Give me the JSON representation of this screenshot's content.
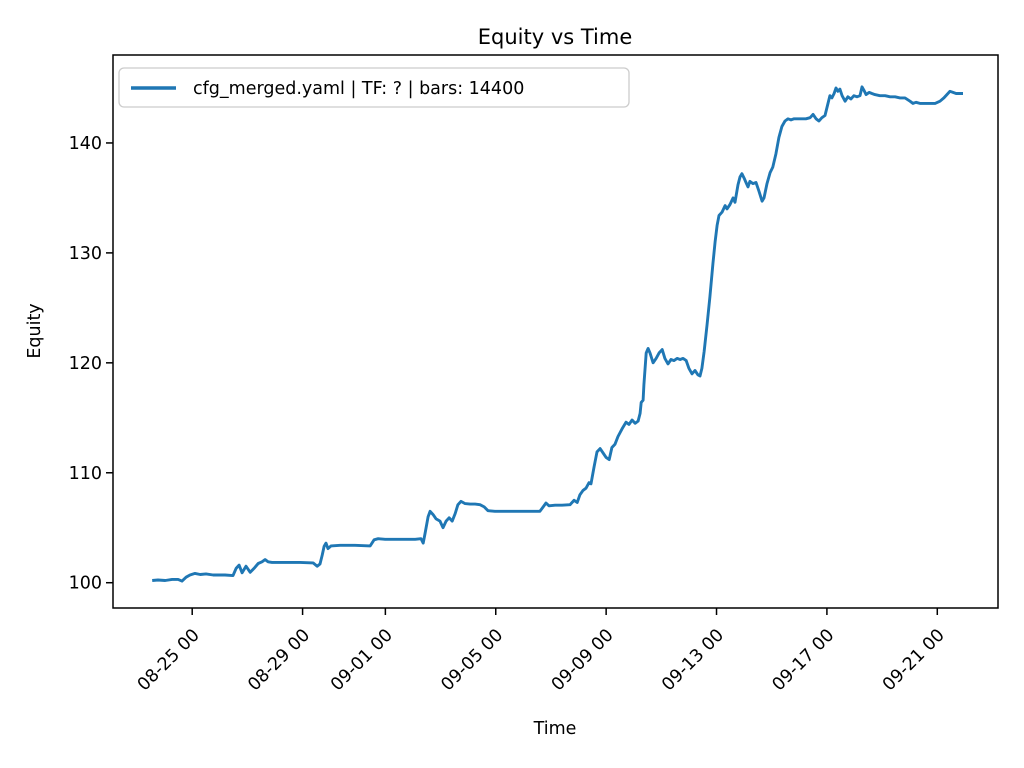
{
  "figure": {
    "title": "Equity vs Time",
    "xlabel": "Time",
    "ylabel": "Equity",
    "legend_label": "cfg_merged.yaml | TF: ? | bars: 14400",
    "line_color": "#1f77b4",
    "background_color": "#ffffff"
  },
  "chart_data": {
    "type": "line",
    "title": "Equity vs Time",
    "xlabel": "Time",
    "ylabel": "Equity",
    "grid": false,
    "legend_position": "upper left",
    "legend_entries": [
      "cfg_merged.yaml | TF: ? | bars: 14400"
    ],
    "x_axis": {
      "unit": "days since 08-23 00:00",
      "tick_positions_days": [
        2,
        6,
        9,
        13,
        17,
        21,
        25,
        29
      ],
      "tick_labels": [
        "08-25 00",
        "08-29 00",
        "09-01 00",
        "09-05 00",
        "09-09 00",
        "09-13 00",
        "09-17 00",
        "09-21 00"
      ],
      "xlim_days": [
        -0.87,
        31.2
      ],
      "tick_label_rotation_deg": 45
    },
    "y_axis": {
      "ticks": [
        100,
        110,
        120,
        130,
        140
      ],
      "ylim": [
        97.7,
        148.0
      ]
    },
    "series": [
      {
        "name": "cfg_merged.yaml | TF: ? | bars: 14400",
        "color": "#1f77b4",
        "x_format": "[days_since_08-23_00:00, equity]",
        "points": [
          [
            0.55,
            100.2
          ],
          [
            0.76,
            100.25
          ],
          [
            1.02,
            100.2
          ],
          [
            1.27,
            100.3
          ],
          [
            1.49,
            100.3
          ],
          [
            1.63,
            100.15
          ],
          [
            1.78,
            100.5
          ],
          [
            1.92,
            100.7
          ],
          [
            2.1,
            100.85
          ],
          [
            2.29,
            100.75
          ],
          [
            2.5,
            100.8
          ],
          [
            2.76,
            100.7
          ],
          [
            3.19,
            100.7
          ],
          [
            3.48,
            100.65
          ],
          [
            3.59,
            101.3
          ],
          [
            3.7,
            101.6
          ],
          [
            3.81,
            100.9
          ],
          [
            3.95,
            101.5
          ],
          [
            4.1,
            100.95
          ],
          [
            4.24,
            101.3
          ],
          [
            4.39,
            101.75
          ],
          [
            4.53,
            101.9
          ],
          [
            4.64,
            102.1
          ],
          [
            4.75,
            101.9
          ],
          [
            4.89,
            101.85
          ],
          [
            5.37,
            101.85
          ],
          [
            5.91,
            101.85
          ],
          [
            6.38,
            101.8
          ],
          [
            6.53,
            101.5
          ],
          [
            6.63,
            101.7
          ],
          [
            6.71,
            102.5
          ],
          [
            6.78,
            103.3
          ],
          [
            6.85,
            103.6
          ],
          [
            6.92,
            103.1
          ],
          [
            7.03,
            103.35
          ],
          [
            7.36,
            103.4
          ],
          [
            7.9,
            103.4
          ],
          [
            8.45,
            103.35
          ],
          [
            8.59,
            103.9
          ],
          [
            8.74,
            104.0
          ],
          [
            8.99,
            103.95
          ],
          [
            9.35,
            103.95
          ],
          [
            9.71,
            103.95
          ],
          [
            10.08,
            103.95
          ],
          [
            10.29,
            104.0
          ],
          [
            10.37,
            103.6
          ],
          [
            10.44,
            104.5
          ],
          [
            10.55,
            106.0
          ],
          [
            10.62,
            106.5
          ],
          [
            10.73,
            106.2
          ],
          [
            10.84,
            105.8
          ],
          [
            10.98,
            105.6
          ],
          [
            11.09,
            105.0
          ],
          [
            11.2,
            105.6
          ],
          [
            11.31,
            105.9
          ],
          [
            11.42,
            105.6
          ],
          [
            11.53,
            106.3
          ],
          [
            11.63,
            107.1
          ],
          [
            11.74,
            107.4
          ],
          [
            11.89,
            107.2
          ],
          [
            12.07,
            107.15
          ],
          [
            12.25,
            107.15
          ],
          [
            12.43,
            107.1
          ],
          [
            12.58,
            106.9
          ],
          [
            12.72,
            106.55
          ],
          [
            12.97,
            106.5
          ],
          [
            13.52,
            106.5
          ],
          [
            14.06,
            106.5
          ],
          [
            14.6,
            106.5
          ],
          [
            14.75,
            107.0
          ],
          [
            14.82,
            107.25
          ],
          [
            14.93,
            107.0
          ],
          [
            15.15,
            107.05
          ],
          [
            15.4,
            107.05
          ],
          [
            15.69,
            107.1
          ],
          [
            15.84,
            107.5
          ],
          [
            15.95,
            107.3
          ],
          [
            16.05,
            108.0
          ],
          [
            16.16,
            108.4
          ],
          [
            16.27,
            108.6
          ],
          [
            16.38,
            109.1
          ],
          [
            16.45,
            109.0
          ],
          [
            16.56,
            110.5
          ],
          [
            16.67,
            111.9
          ],
          [
            16.78,
            112.2
          ],
          [
            16.89,
            111.8
          ],
          [
            17.0,
            111.4
          ],
          [
            17.11,
            111.2
          ],
          [
            17.21,
            112.3
          ],
          [
            17.32,
            112.6
          ],
          [
            17.43,
            113.3
          ],
          [
            17.58,
            114.0
          ],
          [
            17.72,
            114.6
          ],
          [
            17.83,
            114.4
          ],
          [
            17.94,
            114.8
          ],
          [
            18.05,
            114.5
          ],
          [
            18.16,
            114.7
          ],
          [
            18.23,
            115.4
          ],
          [
            18.27,
            116.4
          ],
          [
            18.34,
            116.6
          ],
          [
            18.37,
            118.0
          ],
          [
            18.45,
            120.9
          ],
          [
            18.52,
            121.3
          ],
          [
            18.59,
            120.9
          ],
          [
            18.7,
            120.0
          ],
          [
            18.81,
            120.4
          ],
          [
            18.92,
            120.9
          ],
          [
            19.03,
            121.2
          ],
          [
            19.13,
            120.4
          ],
          [
            19.24,
            119.9
          ],
          [
            19.35,
            120.3
          ],
          [
            19.46,
            120.2
          ],
          [
            19.57,
            120.4
          ],
          [
            19.68,
            120.3
          ],
          [
            19.79,
            120.4
          ],
          [
            19.9,
            120.2
          ],
          [
            20.0,
            119.5
          ],
          [
            20.11,
            119.0
          ],
          [
            20.22,
            119.3
          ],
          [
            20.33,
            118.9
          ],
          [
            20.4,
            118.8
          ],
          [
            20.47,
            119.5
          ],
          [
            20.55,
            121.0
          ],
          [
            20.66,
            123.5
          ],
          [
            20.76,
            126.0
          ],
          [
            20.87,
            129.0
          ],
          [
            20.95,
            131.0
          ],
          [
            21.02,
            132.5
          ],
          [
            21.09,
            133.4
          ],
          [
            21.2,
            133.7
          ],
          [
            21.31,
            134.3
          ],
          [
            21.38,
            134.0
          ],
          [
            21.49,
            134.4
          ],
          [
            21.6,
            135.0
          ],
          [
            21.67,
            134.6
          ],
          [
            21.78,
            136.2
          ],
          [
            21.85,
            136.9
          ],
          [
            21.92,
            137.2
          ],
          [
            22.0,
            136.8
          ],
          [
            22.07,
            136.4
          ],
          [
            22.14,
            136.0
          ],
          [
            22.21,
            136.5
          ],
          [
            22.32,
            136.3
          ],
          [
            22.43,
            136.4
          ],
          [
            22.54,
            135.6
          ],
          [
            22.65,
            134.7
          ],
          [
            22.72,
            135.0
          ],
          [
            22.83,
            136.3
          ],
          [
            22.94,
            137.3
          ],
          [
            23.04,
            137.8
          ],
          [
            23.15,
            139.0
          ],
          [
            23.26,
            140.5
          ],
          [
            23.37,
            141.5
          ],
          [
            23.48,
            142.0
          ],
          [
            23.59,
            142.2
          ],
          [
            23.7,
            142.1
          ],
          [
            23.81,
            142.2
          ],
          [
            23.95,
            142.2
          ],
          [
            24.1,
            142.2
          ],
          [
            24.24,
            142.2
          ],
          [
            24.39,
            142.3
          ],
          [
            24.5,
            142.6
          ],
          [
            24.61,
            142.2
          ],
          [
            24.71,
            142.0
          ],
          [
            24.82,
            142.3
          ],
          [
            24.93,
            142.5
          ],
          [
            25.04,
            143.6
          ],
          [
            25.11,
            144.3
          ],
          [
            25.18,
            144.1
          ],
          [
            25.26,
            144.5
          ],
          [
            25.33,
            145.0
          ],
          [
            25.4,
            144.7
          ],
          [
            25.47,
            144.9
          ],
          [
            25.55,
            144.3
          ],
          [
            25.66,
            143.8
          ],
          [
            25.76,
            144.2
          ],
          [
            25.87,
            144.0
          ],
          [
            25.98,
            144.3
          ],
          [
            26.09,
            144.2
          ],
          [
            26.2,
            144.3
          ],
          [
            26.27,
            145.1
          ],
          [
            26.34,
            144.8
          ],
          [
            26.42,
            144.4
          ],
          [
            26.53,
            144.6
          ],
          [
            26.63,
            144.5
          ],
          [
            26.74,
            144.4
          ],
          [
            26.92,
            144.3
          ],
          [
            27.11,
            144.3
          ],
          [
            27.29,
            144.2
          ],
          [
            27.47,
            144.2
          ],
          [
            27.65,
            144.1
          ],
          [
            27.83,
            144.1
          ],
          [
            28.01,
            143.8
          ],
          [
            28.12,
            143.6
          ],
          [
            28.23,
            143.7
          ],
          [
            28.37,
            143.6
          ],
          [
            28.55,
            143.6
          ],
          [
            28.73,
            143.6
          ],
          [
            28.92,
            143.6
          ],
          [
            29.1,
            143.8
          ],
          [
            29.24,
            144.1
          ],
          [
            29.35,
            144.4
          ],
          [
            29.46,
            144.7
          ],
          [
            29.57,
            144.6
          ],
          [
            29.68,
            144.5
          ],
          [
            29.82,
            144.5
          ],
          [
            29.93,
            144.5
          ]
        ]
      }
    ]
  }
}
